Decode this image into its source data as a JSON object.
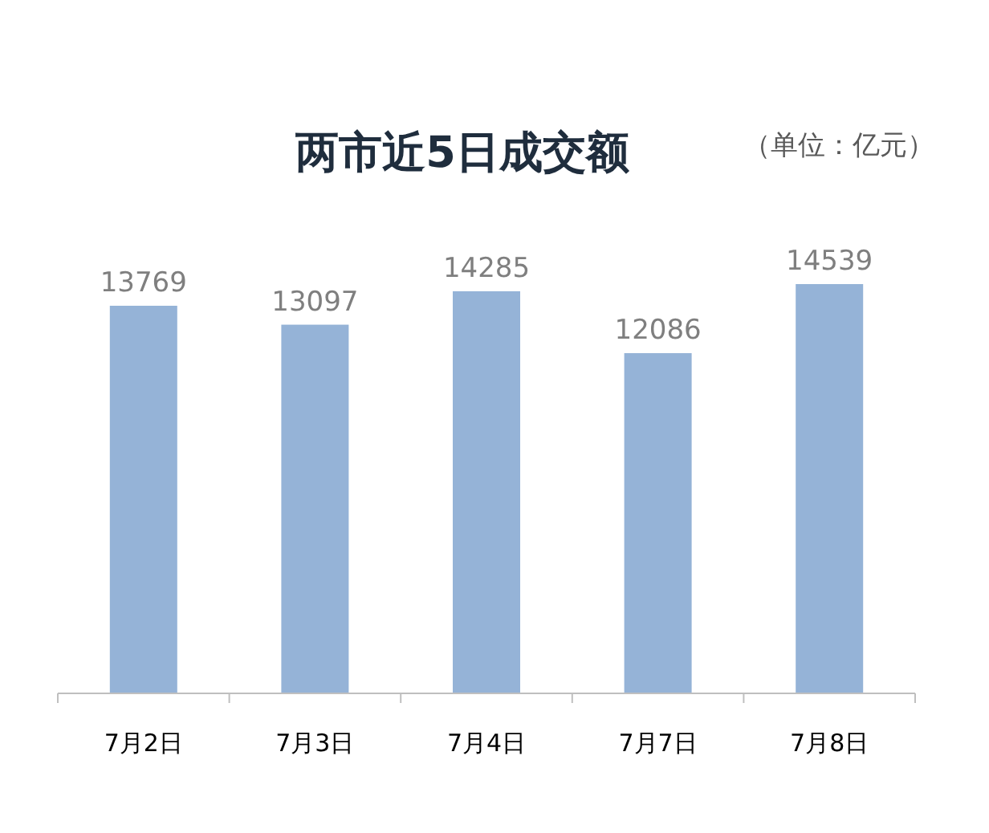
{
  "chart_data": {
    "type": "bar",
    "title": "两市近5日成交额",
    "annotations": [
      "（单位：亿元）"
    ],
    "categories": [
      "7月2日",
      "7月3日",
      "7月4日",
      "7月7日",
      "7月8日"
    ],
    "values": [
      13769,
      13097,
      14285,
      12086,
      14539
    ],
    "color": "#95b3d7",
    "data_labels": true
  }
}
